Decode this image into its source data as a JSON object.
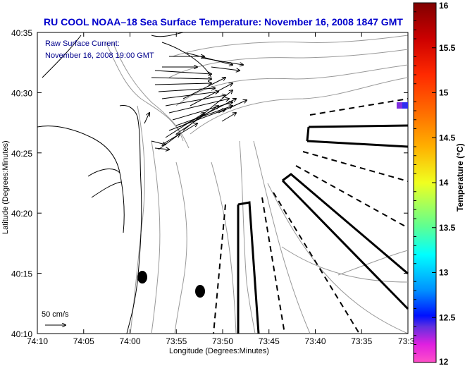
{
  "chart_data": {
    "type": "map",
    "title": "RU COOL  NOAA–18  Sea Surface Temperature:  November 16, 2008 1847 GMT",
    "annotation": {
      "line1": "Raw Surface Current:",
      "line2": "November 16, 2008 19:00 GMT"
    },
    "scale_arrow_label": "50 cm/s",
    "xlabel": "Longitude (Degrees:Minutes)",
    "ylabel": "Latitude (Degrees:Minutes)",
    "x_ticks": [
      "74:10",
      "74:05",
      "74:00",
      "73:55",
      "73:50",
      "73:45",
      "73:40",
      "73:35",
      "73:3"
    ],
    "y_ticks": [
      "40:35",
      "40:30",
      "40:25",
      "40:20",
      "40:15",
      "40:10"
    ],
    "colorbar": {
      "label": "Temperature (°C)",
      "range": [
        12,
        16
      ],
      "ticks": [
        "16",
        "15.5",
        "15",
        "14.5",
        "14",
        "13.5",
        "13",
        "12.5",
        "12"
      ]
    },
    "colors": {
      "title": "#0000cc",
      "annotation": "#00008b",
      "coast": "#000000",
      "bathymetry": "#999999"
    }
  }
}
